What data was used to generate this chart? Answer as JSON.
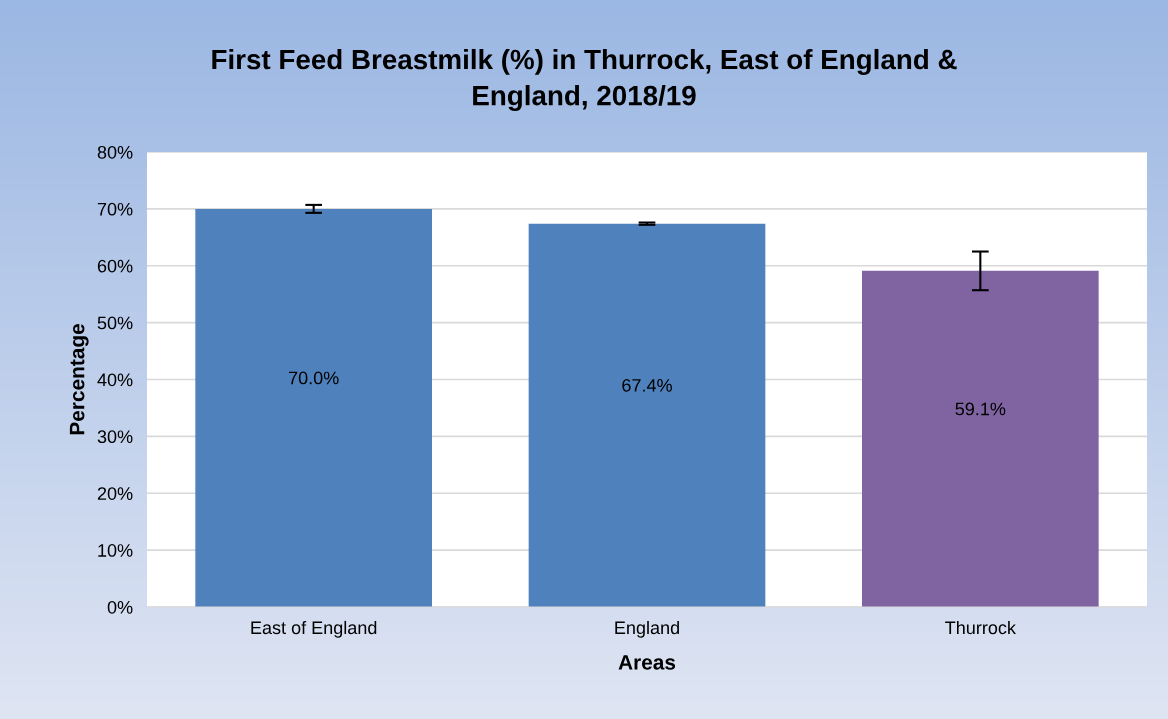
{
  "chart_data": {
    "type": "bar",
    "title": "First Feed Breastmilk (%) in Thurrock, East of England &\nEngland, 2018/19",
    "xlabel": "Areas",
    "ylabel": "Percentage",
    "categories": [
      "East of England",
      "England",
      "Thurrock"
    ],
    "values": [
      70.0,
      67.4,
      59.1
    ],
    "colors": [
      "#4f81bd",
      "#4f81bd",
      "#8064a2"
    ],
    "errors": [
      0.7,
      0.2,
      3.4
    ],
    "value_labels": [
      "70.0%",
      "67.4%",
      "59.1%"
    ],
    "ylim": [
      0,
      80
    ],
    "yticks": [
      {
        "value": 0,
        "label": "0%"
      },
      {
        "value": 10,
        "label": "10%"
      },
      {
        "value": 20,
        "label": "20%"
      },
      {
        "value": 30,
        "label": "30%"
      },
      {
        "value": 40,
        "label": "40%"
      },
      {
        "value": 50,
        "label": "50%"
      },
      {
        "value": 60,
        "label": "60%"
      },
      {
        "value": 70,
        "label": "70%"
      },
      {
        "value": 80,
        "label": "80%"
      }
    ],
    "grid": "y",
    "legend": false
  }
}
